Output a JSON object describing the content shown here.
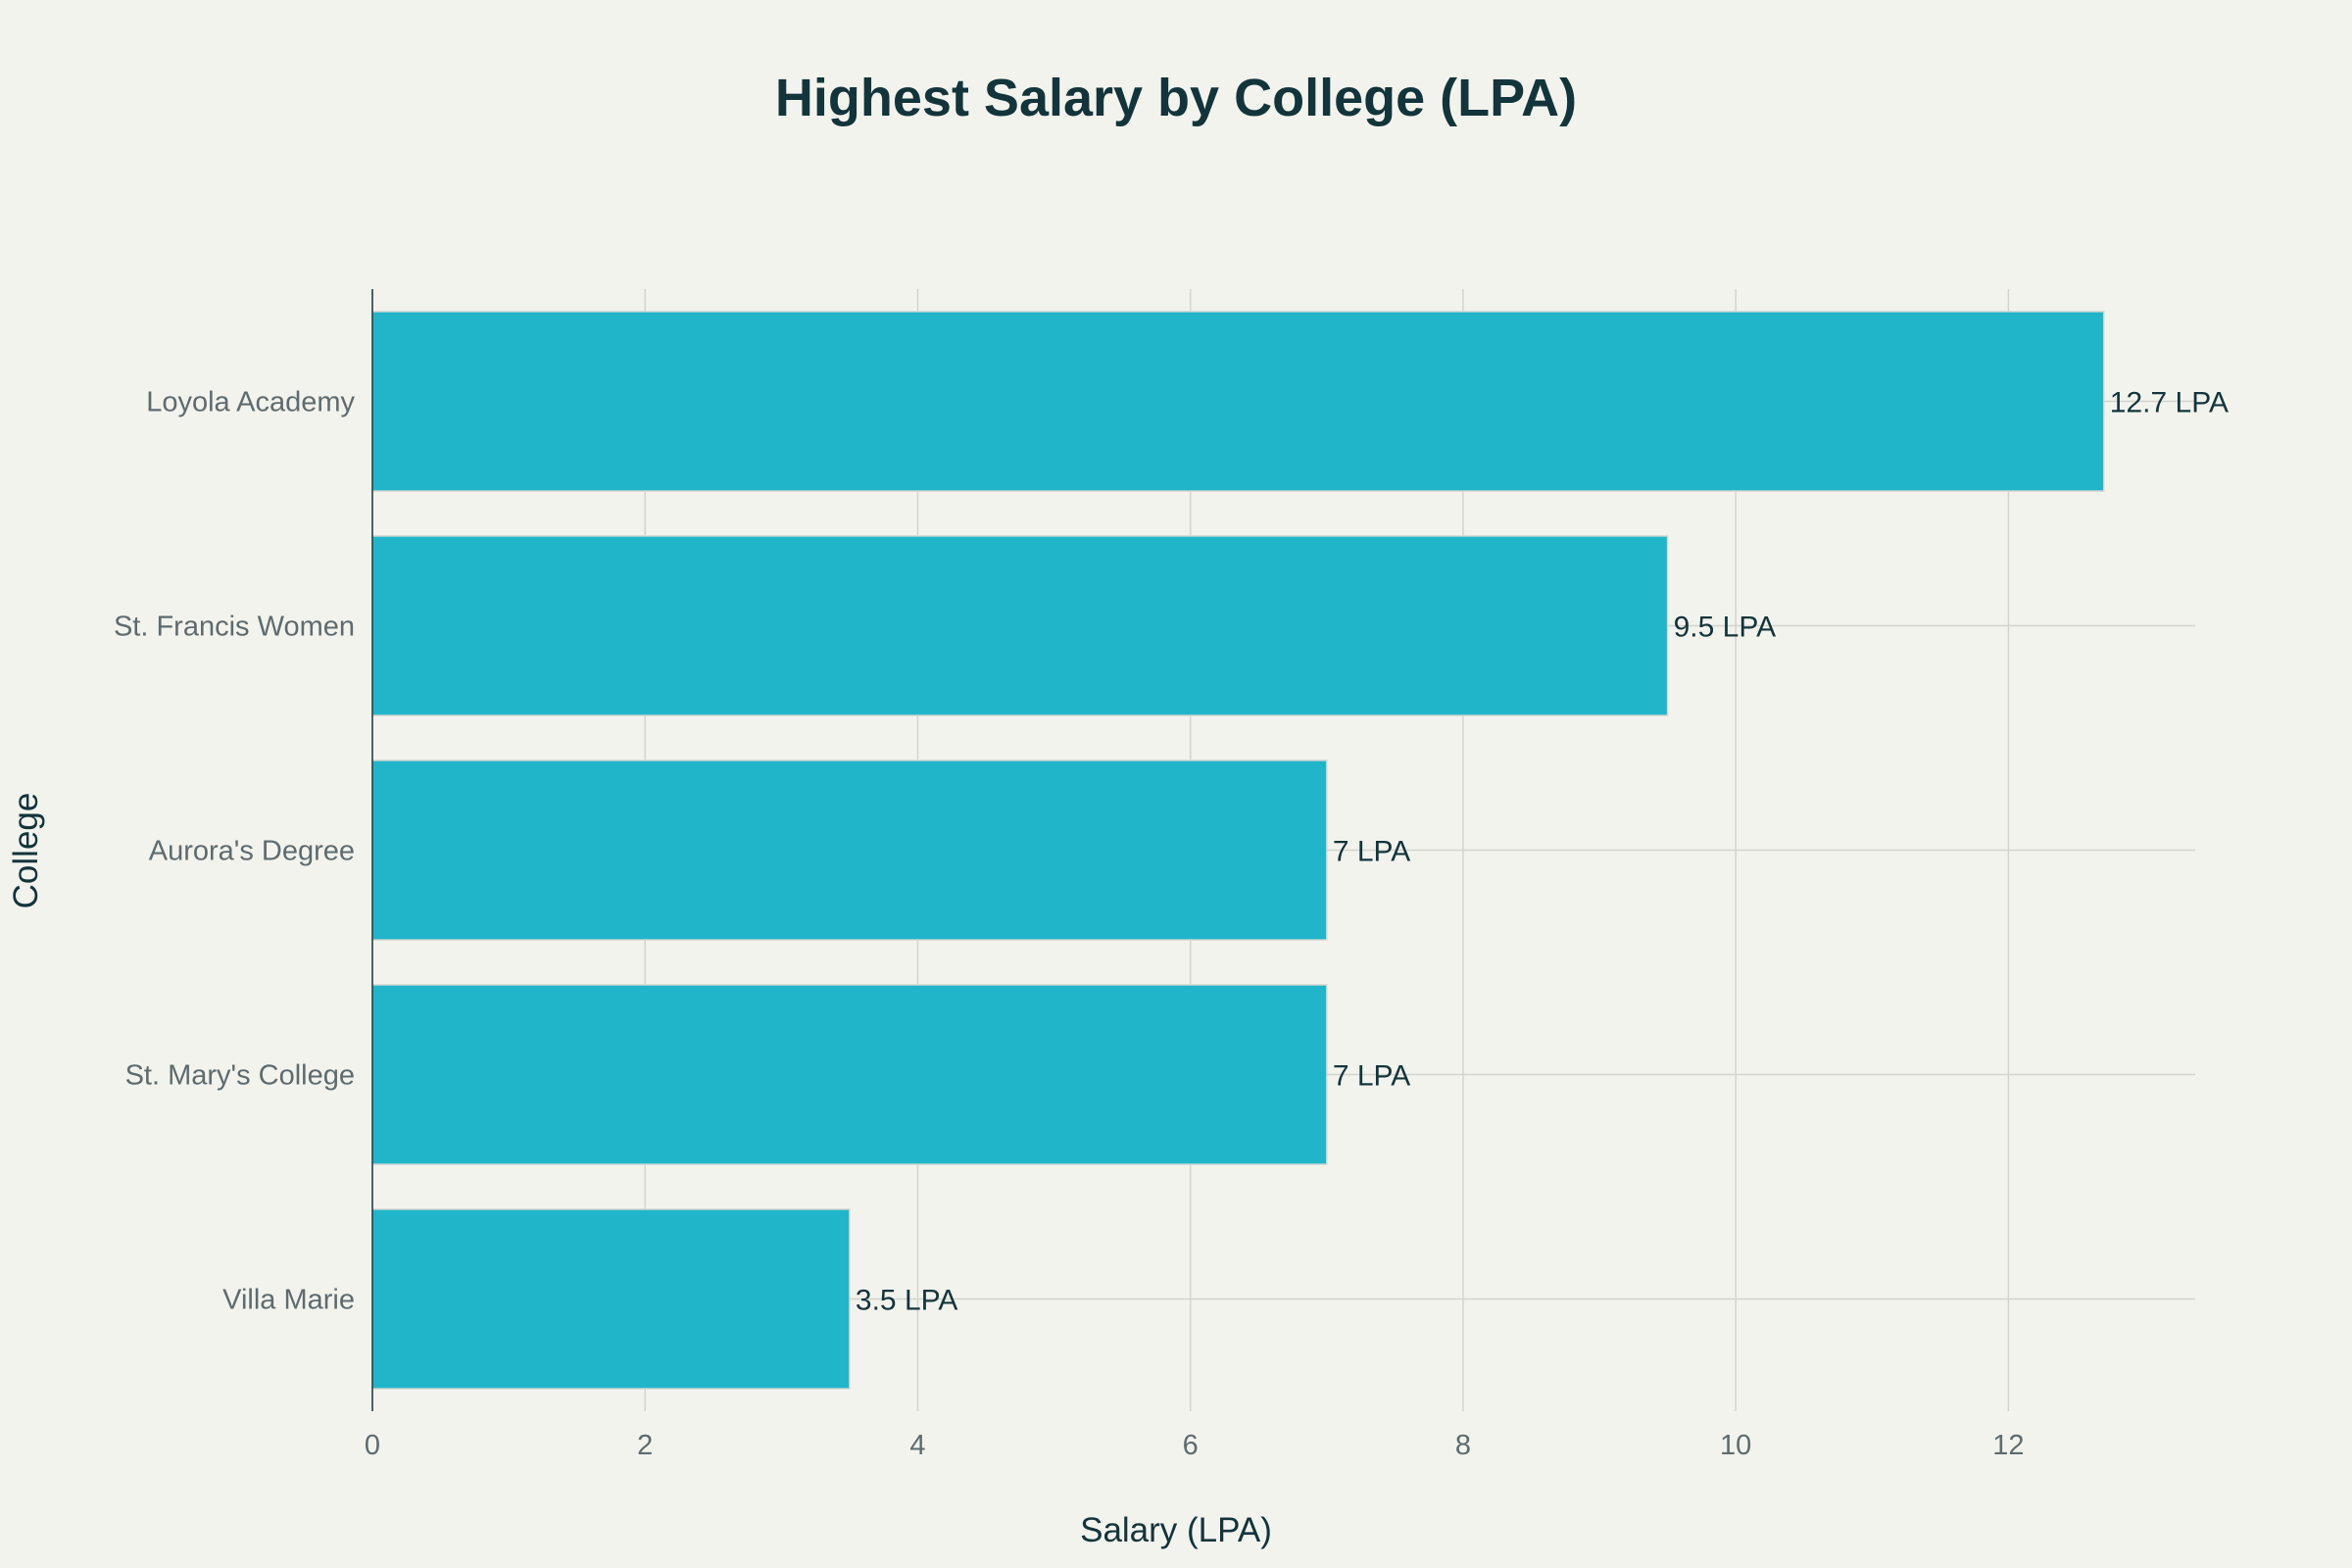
{
  "chart_data": {
    "type": "bar",
    "orientation": "horizontal",
    "title": "Highest Salary by College (LPA)",
    "xlabel": "Salary (LPA)",
    "ylabel": "College",
    "categories": [
      "Loyola Academy",
      "St. Francis Women",
      "Aurora's Degree",
      "St. Mary's College",
      "Villa Marie"
    ],
    "values": [
      12.7,
      9.5,
      7,
      7,
      3.5
    ],
    "data_labels": [
      "12.7 LPA",
      "9.5 LPA",
      "7 LPA",
      "7 LPA",
      "3.5 LPA"
    ],
    "xlim": [
      0,
      13.37
    ],
    "xticks": [
      0,
      2,
      4,
      6,
      8,
      10,
      12
    ],
    "grid": true,
    "legend": "none",
    "colors": {
      "bar": "#21b5ca",
      "background": "#f3f3ee",
      "text": "#13343b",
      "grid": "#d4d4cf"
    }
  }
}
